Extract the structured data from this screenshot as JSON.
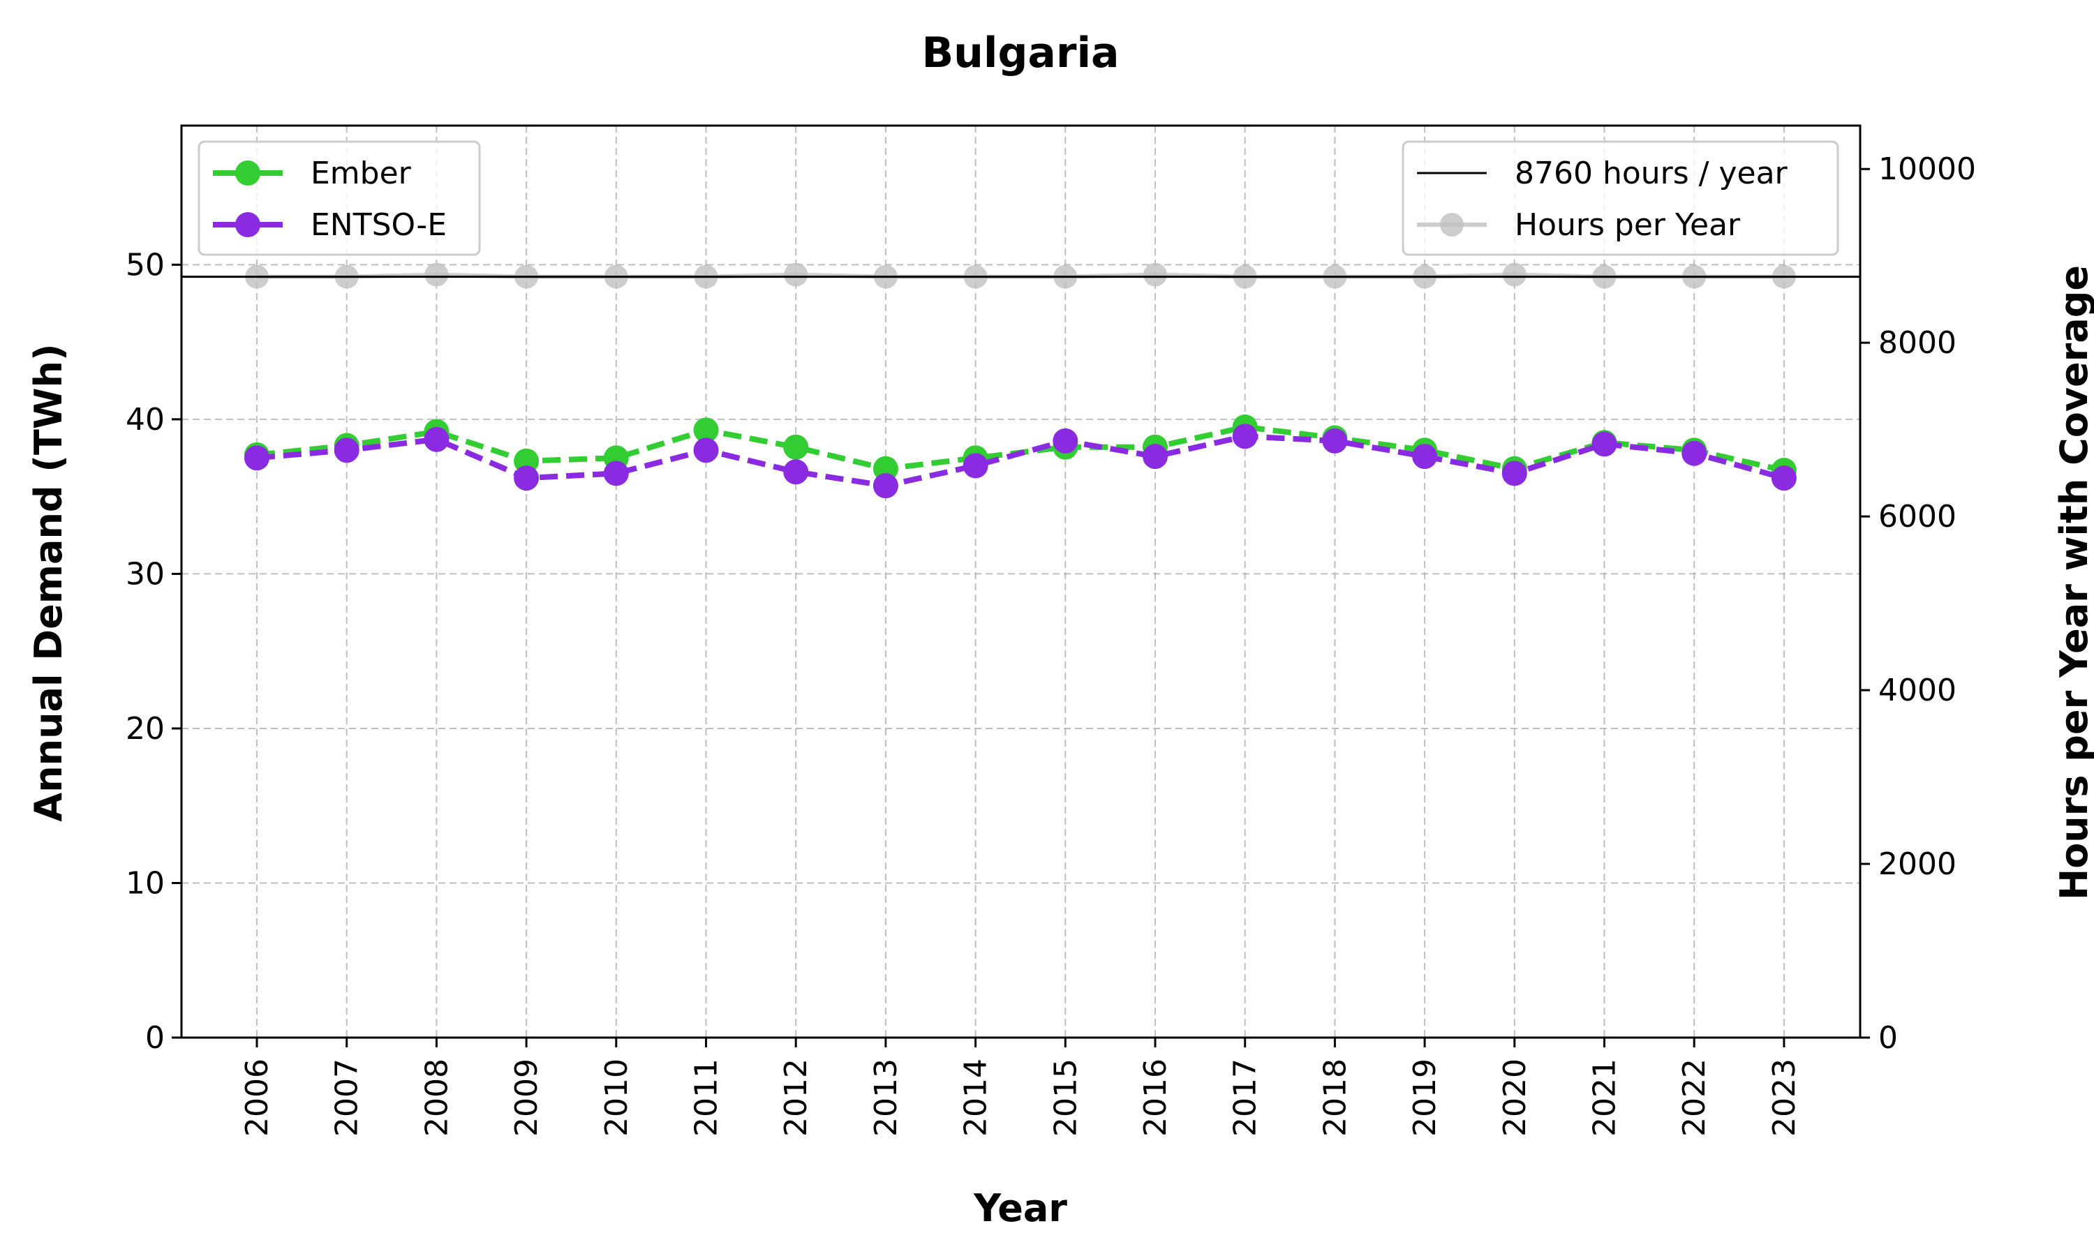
{
  "chart_data": {
    "type": "line",
    "title": "Bulgaria",
    "xlabel": "Year",
    "ylabel": "Annual Demand (TWh)",
    "y2label": "Hours per Year with Coverage",
    "categories": [
      "2006",
      "2007",
      "2008",
      "2009",
      "2010",
      "2011",
      "2012",
      "2013",
      "2014",
      "2015",
      "2016",
      "2017",
      "2018",
      "2019",
      "2020",
      "2021",
      "2022",
      "2023"
    ],
    "ylim": [
      0,
      59
    ],
    "yticks": [
      0,
      10,
      20,
      30,
      40,
      50
    ],
    "y2lim": [
      0,
      10500
    ],
    "y2ticks": [
      0,
      2000,
      4000,
      6000,
      8000,
      10000
    ],
    "grid": true,
    "series": [
      {
        "name": "Ember",
        "axis": "left",
        "color": "#32cd32",
        "style": "dashed",
        "values": [
          37.7,
          38.3,
          39.2,
          37.3,
          37.5,
          39.3,
          38.2,
          36.8,
          37.5,
          38.2,
          38.2,
          39.5,
          38.8,
          38.0,
          36.8,
          38.5,
          38.0,
          36.7
        ]
      },
      {
        "name": "ENTSO-E",
        "axis": "left",
        "color": "#8a2be2",
        "style": "dashed",
        "values": [
          37.5,
          38.0,
          38.7,
          36.2,
          36.5,
          38.0,
          36.6,
          35.7,
          37.0,
          38.6,
          37.6,
          38.9,
          38.6,
          37.6,
          36.5,
          38.4,
          37.8,
          36.2
        ]
      },
      {
        "name": "Hours per Year",
        "axis": "right",
        "color": "#c0c0c0",
        "style": "solid",
        "values": [
          8760,
          8760,
          8784,
          8760,
          8760,
          8760,
          8784,
          8760,
          8760,
          8760,
          8784,
          8760,
          8760,
          8760,
          8784,
          8760,
          8760,
          8760
        ]
      }
    ],
    "reference_line": {
      "name": "8760 hours / year",
      "axis": "right",
      "value": 8760,
      "color": "#000000"
    },
    "legend_left": {
      "placement": "upper-left",
      "entries": [
        "Ember",
        "ENTSO-E"
      ]
    },
    "legend_right": {
      "placement": "upper-right",
      "entries": [
        "8760 hours / year",
        "Hours per Year"
      ]
    }
  }
}
